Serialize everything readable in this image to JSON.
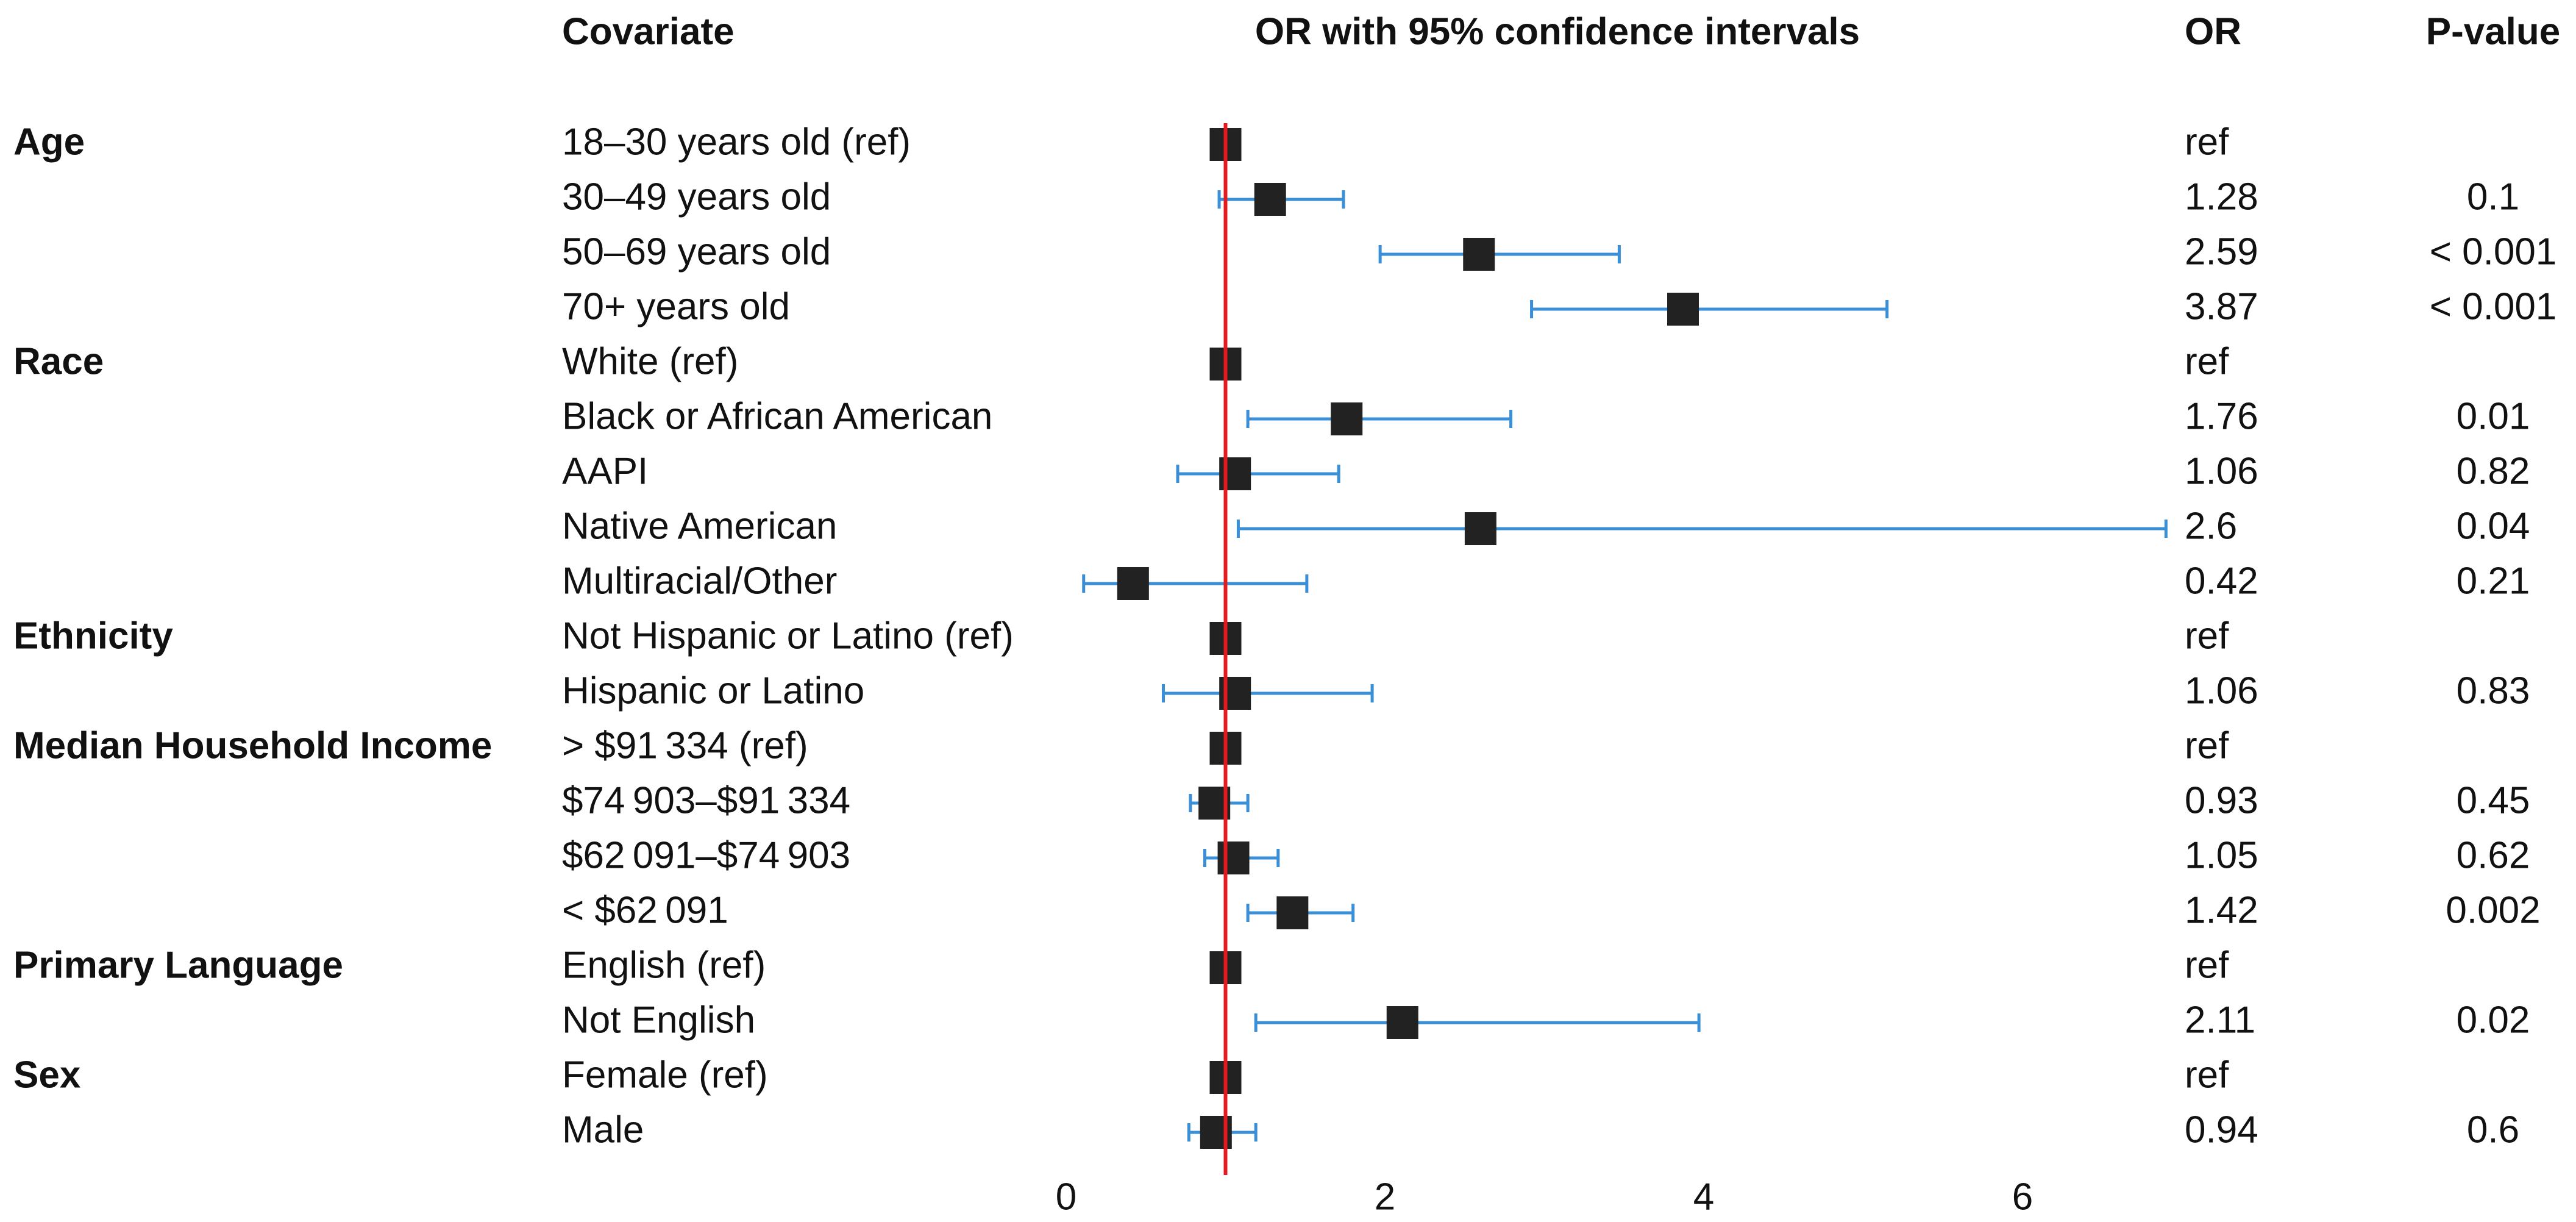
{
  "chart_data": {
    "type": "forest",
    "headers": {
      "covariate": "Covariate",
      "plot": "OR with 95% confidence intervals",
      "or": "OR",
      "p": "P-value"
    },
    "xlim": [
      0,
      7
    ],
    "xticks": [
      0,
      2,
      4,
      6
    ],
    "reference_line": 1,
    "reference_color": "#e41a1c",
    "box_color": "#222222",
    "ci_color": "#3a8fd6",
    "groups": [
      {
        "name": "Age",
        "categories": [
          "18–30 years old (ref)",
          "30–49 years old",
          "50–69 years old",
          "70+ years old"
        ],
        "values": [
          1,
          1.28,
          2.59,
          3.87
        ],
        "value_labels": [
          "ref",
          "1.28",
          "2.59",
          "3.87"
        ],
        "ci_low": [
          null,
          0.96,
          1.97,
          2.92
        ],
        "ci_high": [
          null,
          1.74,
          3.47,
          5.15
        ],
        "p_values": [
          null,
          "0.1",
          "< 0.001",
          "< 0.001"
        ]
      },
      {
        "name": "Race",
        "categories": [
          "White (ref)",
          "Black or African American",
          "AAPI",
          "Native American",
          "Multiracial/Other"
        ],
        "values": [
          1,
          1.76,
          1.06,
          2.6,
          0.42
        ],
        "value_labels": [
          "ref",
          "1.76",
          "1.06",
          "2.6",
          "0.42"
        ],
        "ci_low": [
          null,
          1.14,
          0.7,
          1.08,
          0.11
        ],
        "ci_high": [
          null,
          2.79,
          1.71,
          6.9,
          1.51
        ],
        "p_values": [
          null,
          "0.01",
          "0.82",
          "0.04",
          "0.21"
        ]
      },
      {
        "name": "Ethnicity",
        "categories": [
          "Not Hispanic or Latino (ref)",
          "Hispanic or Latino"
        ],
        "values": [
          1,
          1.06
        ],
        "value_labels": [
          "ref",
          "1.06"
        ],
        "ci_low": [
          null,
          0.61
        ],
        "ci_high": [
          null,
          1.92
        ],
        "p_values": [
          null,
          "0.83"
        ]
      },
      {
        "name": "Median Household Income",
        "categories": [
          "> $91 334 (ref)",
          "$74 903–$91 334",
          "$62 091–$74 903",
          "< $62 091"
        ],
        "values": [
          1,
          0.93,
          1.05,
          1.42
        ],
        "value_labels": [
          "ref",
          "0.93",
          "1.05",
          "1.42"
        ],
        "ci_low": [
          null,
          0.78,
          0.87,
          1.14
        ],
        "ci_high": [
          null,
          1.14,
          1.33,
          1.8
        ],
        "p_values": [
          null,
          "0.45",
          "0.62",
          "0.002"
        ]
      },
      {
        "name": "Primary Language",
        "categories": [
          "English (ref)",
          "Not English"
        ],
        "values": [
          1,
          2.11
        ],
        "value_labels": [
          "ref",
          "2.11"
        ],
        "ci_low": [
          null,
          1.19
        ],
        "ci_high": [
          null,
          3.97
        ],
        "p_values": [
          null,
          "0.02"
        ]
      },
      {
        "name": "Sex",
        "categories": [
          "Female (ref)",
          "Male"
        ],
        "values": [
          1,
          0.94
        ],
        "value_labels": [
          "ref",
          "0.94"
        ],
        "ci_low": [
          null,
          0.77
        ],
        "ci_high": [
          null,
          1.19
        ],
        "p_values": [
          null,
          "0.6"
        ]
      }
    ]
  }
}
